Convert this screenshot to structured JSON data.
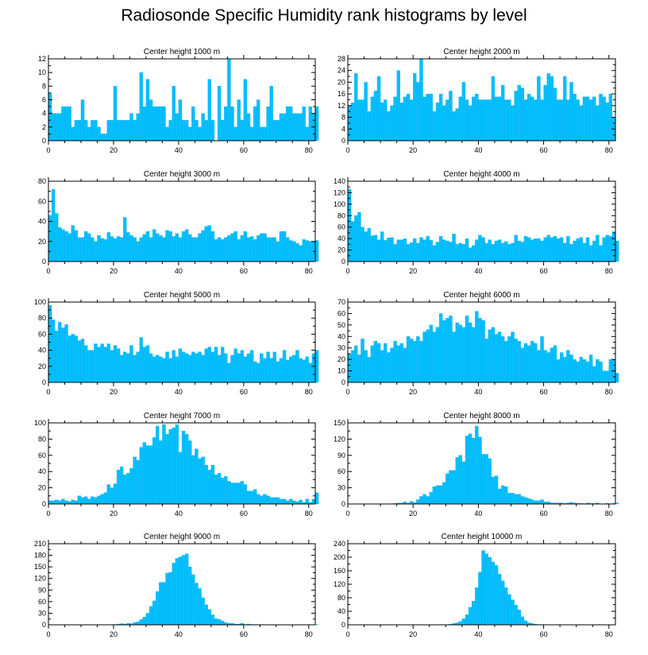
{
  "title": "Radiosonde Specific Humidity rank histograms by level",
  "colors": {
    "bar": "#00bfff",
    "bar_edge": "#22a6dc",
    "axis": "#000000"
  },
  "chart_data": [
    {
      "type": "bar",
      "title": "Center height 1000 m",
      "xlim": [
        0,
        82
      ],
      "xticks": [
        0,
        20,
        40,
        60,
        80
      ],
      "ylim": [
        0,
        12
      ],
      "yticks": [
        0,
        2,
        4,
        6,
        8,
        10,
        12
      ],
      "values": [
        7,
        4,
        4,
        4,
        5,
        5,
        5,
        2,
        3,
        3,
        6,
        3,
        2,
        3,
        3,
        2,
        1,
        1,
        3,
        3,
        8,
        3,
        3,
        3,
        3,
        4,
        3,
        4,
        10,
        5,
        9,
        6,
        5,
        5,
        5,
        5,
        2,
        3,
        8,
        4,
        6,
        3,
        3,
        2,
        5,
        3,
        2,
        4,
        3,
        9,
        3,
        0,
        8,
        3,
        5,
        12,
        5,
        2,
        6,
        3,
        9,
        4,
        2,
        5,
        6,
        2,
        2,
        5,
        8,
        3,
        3,
        4,
        4,
        5,
        5,
        4,
        4,
        4,
        5,
        2,
        5,
        4,
        5
      ]
    },
    {
      "type": "bar",
      "title": "Center height 2000 m",
      "xlim": [
        0,
        82
      ],
      "xticks": [
        0,
        20,
        40,
        60,
        80
      ],
      "ylim": [
        0,
        28
      ],
      "yticks": [
        0,
        4,
        8,
        12,
        16,
        20,
        24,
        28
      ],
      "values": [
        12,
        13,
        23,
        14,
        14,
        20,
        10,
        15,
        17,
        22,
        13,
        14,
        10,
        12,
        15,
        24,
        13,
        15,
        16,
        14,
        23,
        20,
        28,
        15,
        16,
        16,
        10,
        13,
        16,
        12,
        14,
        17,
        10,
        11,
        15,
        20,
        14,
        12,
        15,
        16,
        14,
        14,
        14,
        14,
        22,
        15,
        15,
        19,
        14,
        14,
        12,
        17,
        19,
        18,
        14,
        16,
        15,
        14,
        22,
        14,
        19,
        23,
        22,
        18,
        14,
        14,
        22,
        14,
        20,
        16,
        14,
        12,
        15,
        15,
        14,
        15,
        12,
        16,
        15,
        13,
        16,
        8
      ]
    },
    {
      "type": "bar",
      "title": "Center height 3000 m",
      "xlim": [
        0,
        82
      ],
      "xticks": [
        0,
        20,
        40,
        60,
        80
      ],
      "ylim": [
        0,
        80
      ],
      "yticks": [
        0,
        20,
        40,
        60,
        80
      ],
      "values": [
        46,
        72,
        48,
        34,
        32,
        30,
        28,
        36,
        31,
        24,
        24,
        30,
        28,
        24,
        20,
        26,
        23,
        22,
        29,
        25,
        23,
        25,
        24,
        44,
        29,
        26,
        24,
        20,
        24,
        27,
        30,
        24,
        32,
        28,
        26,
        24,
        31,
        30,
        25,
        28,
        24,
        30,
        32,
        27,
        24,
        24,
        28,
        31,
        35,
        36,
        30,
        22,
        24,
        22,
        24,
        26,
        28,
        30,
        22,
        26,
        30,
        24,
        25,
        22,
        26,
        28,
        28,
        24,
        24,
        24,
        20,
        30,
        30,
        24,
        21,
        20,
        18,
        16,
        22,
        21,
        20,
        20,
        21
      ]
    },
    {
      "type": "bar",
      "title": "Center height 4000 m",
      "xlim": [
        0,
        82
      ],
      "xticks": [
        0,
        20,
        40,
        60,
        80
      ],
      "ylim": [
        0,
        140
      ],
      "yticks": [
        0,
        20,
        40,
        60,
        80,
        100,
        120,
        140
      ],
      "values": [
        126,
        70,
        80,
        86,
        60,
        52,
        58,
        45,
        46,
        38,
        52,
        37,
        41,
        42,
        30,
        38,
        38,
        40,
        30,
        33,
        40,
        32,
        42,
        38,
        44,
        37,
        28,
        34,
        44,
        38,
        36,
        34,
        48,
        30,
        32,
        30,
        40,
        24,
        28,
        38,
        46,
        42,
        32,
        38,
        30,
        36,
        38,
        32,
        35,
        30,
        32,
        46,
        36,
        34,
        44,
        42,
        38,
        40,
        40,
        36,
        42,
        46,
        42,
        44,
        40,
        42,
        32,
        44,
        30,
        36,
        40,
        42,
        32,
        42,
        28,
        36,
        46,
        28,
        42,
        46,
        44,
        52,
        36
      ]
    },
    {
      "type": "bar",
      "title": "Center height 5000 m",
      "xlim": [
        0,
        82
      ],
      "xticks": [
        0,
        20,
        40,
        60,
        80
      ],
      "ylim": [
        0,
        100
      ],
      "yticks": [
        0,
        20,
        40,
        60,
        80,
        100
      ],
      "values": [
        96,
        78,
        64,
        75,
        68,
        72,
        58,
        60,
        58,
        52,
        54,
        46,
        40,
        40,
        48,
        44,
        48,
        44,
        48,
        40,
        46,
        42,
        34,
        38,
        36,
        46,
        34,
        38,
        56,
        44,
        46,
        36,
        32,
        34,
        32,
        30,
        38,
        30,
        40,
        32,
        42,
        38,
        36,
        34,
        38,
        36,
        38,
        34,
        42,
        44,
        38,
        44,
        34,
        44,
        36,
        24,
        34,
        42,
        36,
        40,
        32,
        36,
        40,
        26,
        24,
        36,
        30,
        38,
        30,
        38,
        26,
        30,
        40,
        28,
        32,
        34,
        40,
        30,
        28,
        32,
        24,
        36,
        40
      ]
    },
    {
      "type": "bar",
      "title": "Center height 6000 m",
      "xlim": [
        0,
        82
      ],
      "xticks": [
        0,
        20,
        40,
        60,
        80
      ],
      "ylim": [
        0,
        70
      ],
      "yticks": [
        0,
        10,
        20,
        30,
        40,
        50,
        60,
        70
      ],
      "values": [
        25,
        28,
        32,
        24,
        38,
        28,
        22,
        32,
        36,
        34,
        28,
        34,
        26,
        30,
        36,
        32,
        34,
        30,
        40,
        38,
        36,
        40,
        36,
        44,
        46,
        50,
        44,
        48,
        60,
        54,
        56,
        58,
        44,
        52,
        50,
        48,
        58,
        52,
        48,
        62,
        56,
        54,
        38,
        46,
        48,
        42,
        44,
        40,
        36,
        40,
        44,
        38,
        36,
        30,
        34,
        32,
        36,
        34,
        28,
        40,
        28,
        26,
        30,
        32,
        20,
        26,
        22,
        28,
        24,
        20,
        18,
        22,
        20,
        18,
        24,
        14,
        20,
        18,
        10,
        10,
        20,
        20,
        8
      ]
    },
    {
      "type": "bar",
      "title": "Center height 7000 m",
      "xlim": [
        0,
        82
      ],
      "xticks": [
        0,
        20,
        40,
        60,
        80
      ],
      "ylim": [
        0,
        100
      ],
      "yticks": [
        0,
        20,
        40,
        60,
        80,
        100
      ],
      "values": [
        4,
        4,
        5,
        4,
        6,
        4,
        3,
        5,
        4,
        10,
        8,
        9,
        6,
        9,
        8,
        10,
        12,
        14,
        24,
        20,
        25,
        42,
        46,
        36,
        38,
        44,
        58,
        54,
        70,
        76,
        72,
        72,
        82,
        96,
        78,
        98,
        86,
        92,
        94,
        98,
        64,
        90,
        86,
        78,
        60,
        68,
        56,
        58,
        48,
        42,
        48,
        36,
        38,
        32,
        34,
        28,
        26,
        26,
        26,
        28,
        24,
        16,
        16,
        18,
        12,
        10,
        12,
        10,
        8,
        8,
        8,
        6,
        6,
        4,
        6,
        4,
        3,
        5,
        2,
        6,
        2,
        6,
        14
      ]
    },
    {
      "type": "bar",
      "title": "Center height 8000 m",
      "xlim": [
        0,
        82
      ],
      "xticks": [
        0,
        20,
        40,
        60,
        80
      ],
      "ylim": [
        0,
        150
      ],
      "yticks": [
        0,
        30,
        60,
        90,
        120,
        150
      ],
      "values": [
        0,
        0,
        0,
        0,
        0,
        0,
        0,
        0,
        0,
        0,
        0,
        0,
        0,
        0,
        1,
        2,
        2,
        4,
        2,
        5,
        3,
        8,
        14,
        18,
        14,
        22,
        32,
        34,
        34,
        40,
        56,
        62,
        62,
        86,
        90,
        78,
        126,
        130,
        122,
        144,
        124,
        92,
        92,
        84,
        50,
        52,
        28,
        34,
        32,
        20,
        20,
        18,
        18,
        14,
        12,
        10,
        8,
        6,
        6,
        8,
        4,
        4,
        2,
        2,
        2,
        2,
        1,
        2,
        3,
        2,
        1,
        1,
        0,
        2,
        1,
        1,
        2,
        0,
        0,
        1,
        0,
        1,
        2
      ]
    },
    {
      "type": "bar",
      "title": "Center height 9000 m",
      "xlim": [
        0,
        82
      ],
      "xticks": [
        0,
        20,
        40,
        60,
        80
      ],
      "ylim": [
        0,
        210
      ],
      "yticks": [
        0,
        30,
        60,
        90,
        120,
        150,
        180,
        210
      ],
      "values": [
        0,
        0,
        0,
        0,
        0,
        0,
        0,
        0,
        0,
        0,
        0,
        0,
        0,
        0,
        0,
        0,
        0,
        0,
        0,
        0,
        1,
        2,
        3,
        2,
        4,
        3,
        6,
        8,
        14,
        20,
        30,
        48,
        62,
        86,
        110,
        110,
        134,
        136,
        160,
        172,
        176,
        180,
        184,
        150,
        130,
        108,
        94,
        70,
        52,
        40,
        26,
        16,
        14,
        10,
        6,
        4,
        4,
        2,
        2,
        4,
        1,
        2,
        1,
        1,
        0,
        1,
        0,
        0,
        0,
        0,
        0,
        0,
        0,
        0,
        0,
        0,
        0,
        0,
        0,
        0,
        0,
        0,
        1
      ]
    },
    {
      "type": "bar",
      "title": "Center height 10000 m",
      "xlim": [
        0,
        82
      ],
      "xticks": [
        0,
        20,
        40,
        60,
        80
      ],
      "ylim": [
        0,
        240
      ],
      "yticks": [
        0,
        40,
        80,
        120,
        160,
        200,
        240
      ],
      "values": [
        0,
        0,
        0,
        0,
        0,
        0,
        0,
        0,
        0,
        0,
        0,
        0,
        0,
        0,
        0,
        0,
        0,
        0,
        0,
        0,
        0,
        0,
        0,
        0,
        0,
        0,
        0,
        0,
        0,
        0,
        0,
        2,
        4,
        6,
        10,
        18,
        30,
        52,
        70,
        110,
        156,
        220,
        210,
        200,
        186,
        176,
        150,
        130,
        110,
        90,
        74,
        58,
        44,
        24,
        12,
        6,
        4,
        2,
        1,
        1,
        0,
        0,
        0,
        0,
        0,
        0,
        0,
        0,
        0,
        0,
        0,
        0,
        0,
        0,
        0,
        0,
        0,
        0,
        0,
        0,
        0,
        0,
        0
      ]
    }
  ]
}
